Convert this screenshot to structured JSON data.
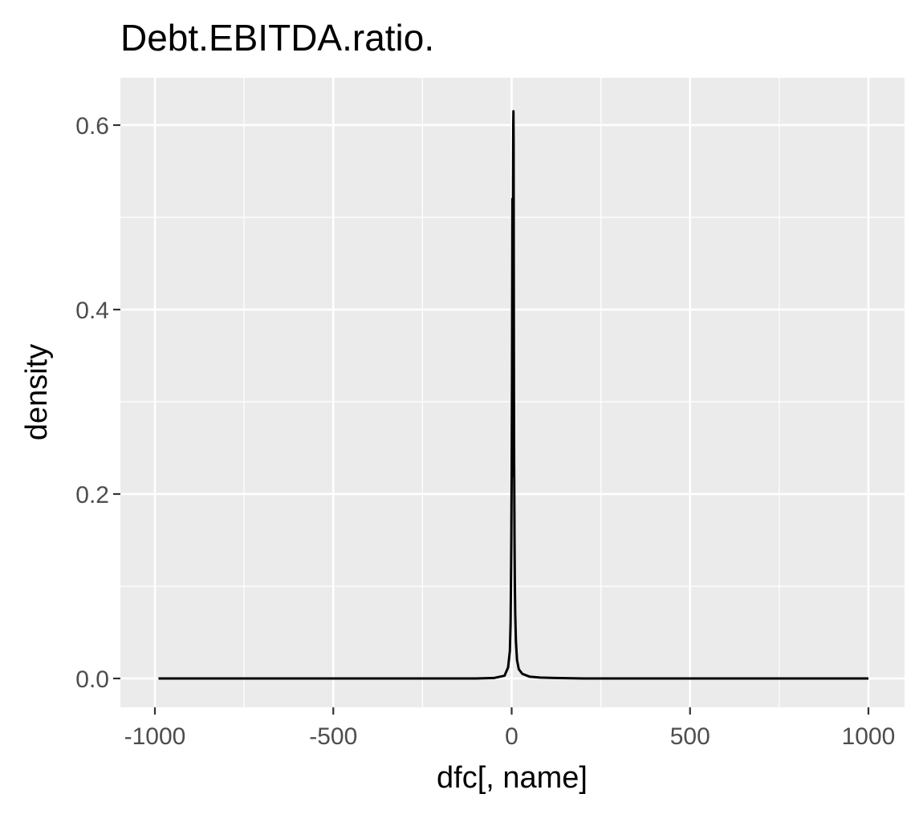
{
  "chart_data": {
    "type": "line",
    "title": "Debt.EBITDA.ratio.",
    "xlabel": "dfc[, name]",
    "ylabel": "density",
    "xlim": [
      -1000,
      1000
    ],
    "ylim": [
      0,
      0.62
    ],
    "x_ticks": [
      {
        "value": -1000,
        "label": "-1000"
      },
      {
        "value": -500,
        "label": "-500"
      },
      {
        "value": 0,
        "label": "0"
      },
      {
        "value": 500,
        "label": "500"
      },
      {
        "value": 1000,
        "label": "1000"
      }
    ],
    "y_ticks": [
      {
        "value": 0,
        "label": "0.0"
      },
      {
        "value": 0.2,
        "label": "0.2"
      },
      {
        "value": 0.4,
        "label": "0.4"
      },
      {
        "value": 0.6,
        "label": "0.6"
      }
    ],
    "x_minor_gridlines": [
      -750,
      -250,
      250,
      750
    ],
    "y_minor_gridlines": [
      0.1,
      0.3,
      0.5
    ],
    "grid": true,
    "legend": "none",
    "series": [
      {
        "x": [
          -990,
          -500,
          -100,
          -50,
          -20,
          -10,
          -5,
          -3,
          -2,
          -1,
          0,
          1,
          2,
          2.5,
          3,
          3.5,
          4,
          4.5,
          5,
          5.5,
          6,
          6.5,
          7,
          8,
          9,
          10,
          12,
          15,
          20,
          30,
          50,
          80,
          120,
          200,
          500,
          1000
        ],
        "y": [
          0,
          0,
          0,
          0.0005,
          0.003,
          0.012,
          0.03,
          0.06,
          0.1,
          0.15,
          0.22,
          0.33,
          0.52,
          0.42,
          0.22,
          0.42,
          0.54,
          0.6,
          0.615,
          0.58,
          0.42,
          0.3,
          0.23,
          0.15,
          0.1,
          0.07,
          0.04,
          0.02,
          0.01,
          0.005,
          0.002,
          0.001,
          0.0005,
          0,
          0,
          0
        ]
      }
    ]
  },
  "colors": {
    "panel_background": "#ebebeb",
    "gridline": "#ffffff",
    "line": "#000000",
    "tick_text": "#4d4d4d",
    "text": "#000000"
  }
}
